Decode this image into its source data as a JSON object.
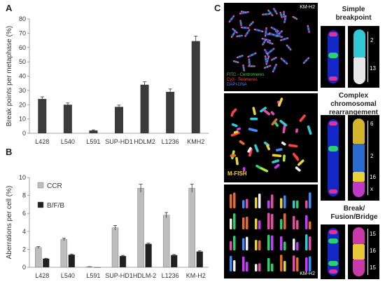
{
  "panel_a": {
    "letter": "A",
    "ylabel": "Break points per metaphase (%)",
    "chart_data": {
      "type": "bar",
      "categories": [
        "L428",
        "L540",
        "L591",
        "SUP-HD1",
        "HDLM2",
        "L1236",
        "KMH2"
      ],
      "values": [
        24,
        20,
        2,
        18.5,
        34,
        29,
        64.5
      ],
      "errors": [
        1.5,
        1.2,
        0.4,
        1.2,
        2,
        2,
        3.5
      ],
      "ylim": [
        0,
        80
      ],
      "yticks": [
        0,
        10,
        20,
        30,
        40,
        50,
        60,
        70,
        80
      ],
      "color": "#3b3b3b"
    }
  },
  "panel_b": {
    "letter": "B",
    "ylabel": "Aberrations per cell (%)",
    "chart_data": {
      "type": "bar",
      "categories": [
        "L428",
        "L540",
        "L591",
        "SUP-HD1",
        "HDLM-2",
        "L1236",
        "KM-H2"
      ],
      "series": [
        {
          "name": "CCR",
          "values": [
            2.2,
            3.1,
            0.05,
            4.4,
            8.8,
            5.8,
            8.8
          ],
          "errors": [
            0.1,
            0.15,
            0.02,
            0.25,
            0.45,
            0.3,
            0.45
          ],
          "color": "#bdbdbd"
        },
        {
          "name": "B/F/B",
          "values": [
            0.95,
            1.4,
            0,
            1.25,
            2.6,
            1.35,
            1.75
          ],
          "errors": [
            0.05,
            0.07,
            0,
            0.07,
            0.1,
            0.07,
            0.08
          ],
          "color": "#202020"
        }
      ],
      "ylim": [
        0,
        10
      ],
      "yticks": [
        0,
        2,
        4,
        6,
        8,
        10
      ],
      "legend": "top-left"
    }
  },
  "panel_c": {
    "letter": "C",
    "top_image": {
      "tag": "KM-H2",
      "legend": [
        "FITC - Centromeres",
        "Cy3 - Telomeres",
        "DAPI-DNA"
      ],
      "legend_colors": [
        "#3bd23b",
        "#ff4040",
        "#5a7cff"
      ]
    },
    "middle_image": {
      "tag": "M-FISH",
      "tag_color": "#ffd21a"
    },
    "bottom_image": {
      "tag": "KM-H2"
    },
    "sections": [
      {
        "title": "Simple breakpoint",
        "labels": [
          "2",
          "13"
        ]
      },
      {
        "title": "Complex chromosomal rearrangement",
        "labels": [
          "6",
          "2",
          "16",
          "x"
        ]
      },
      {
        "title": "Break/ Fusion/Bridge",
        "labels": [
          "15",
          "16",
          "15"
        ]
      }
    ]
  }
}
